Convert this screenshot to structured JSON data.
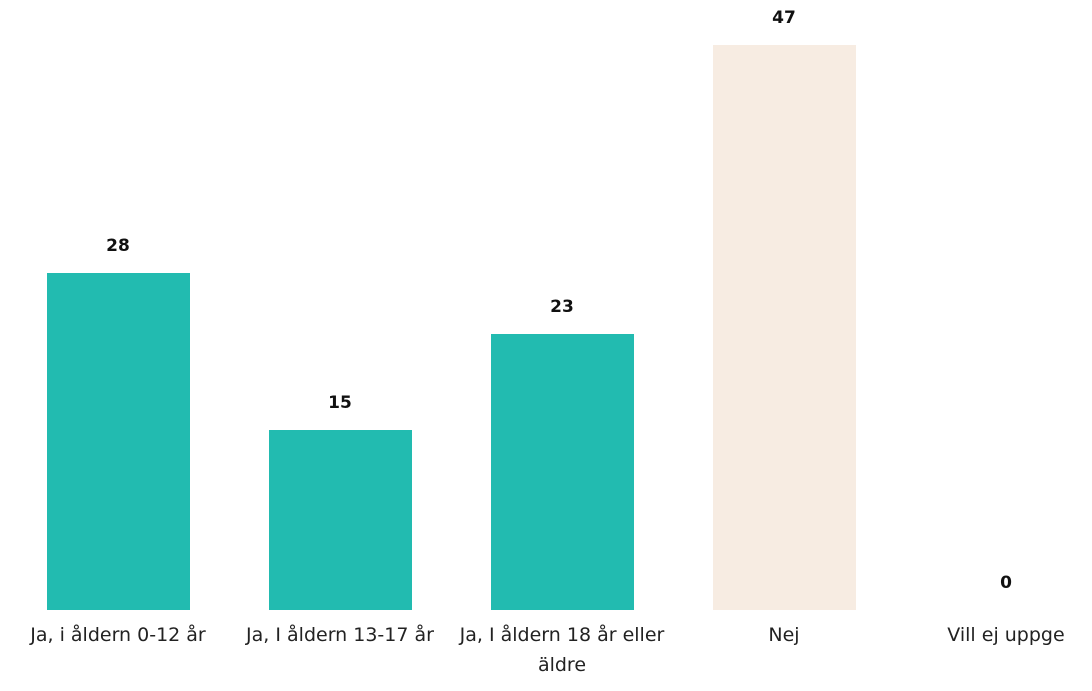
{
  "chart_data": {
    "type": "bar",
    "categories": [
      "Ja, i åldern 0-12 år",
      "Ja, I åldern 13-17 år",
      "Ja, I åldern 18 år eller äldre",
      "Nej",
      "Vill ej uppge"
    ],
    "values": [
      28,
      15,
      23,
      47,
      0
    ],
    "colors": [
      "#22bbb0",
      "#22bbb0",
      "#22bbb0",
      "#f7ece2",
      "#22bbb0"
    ]
  }
}
